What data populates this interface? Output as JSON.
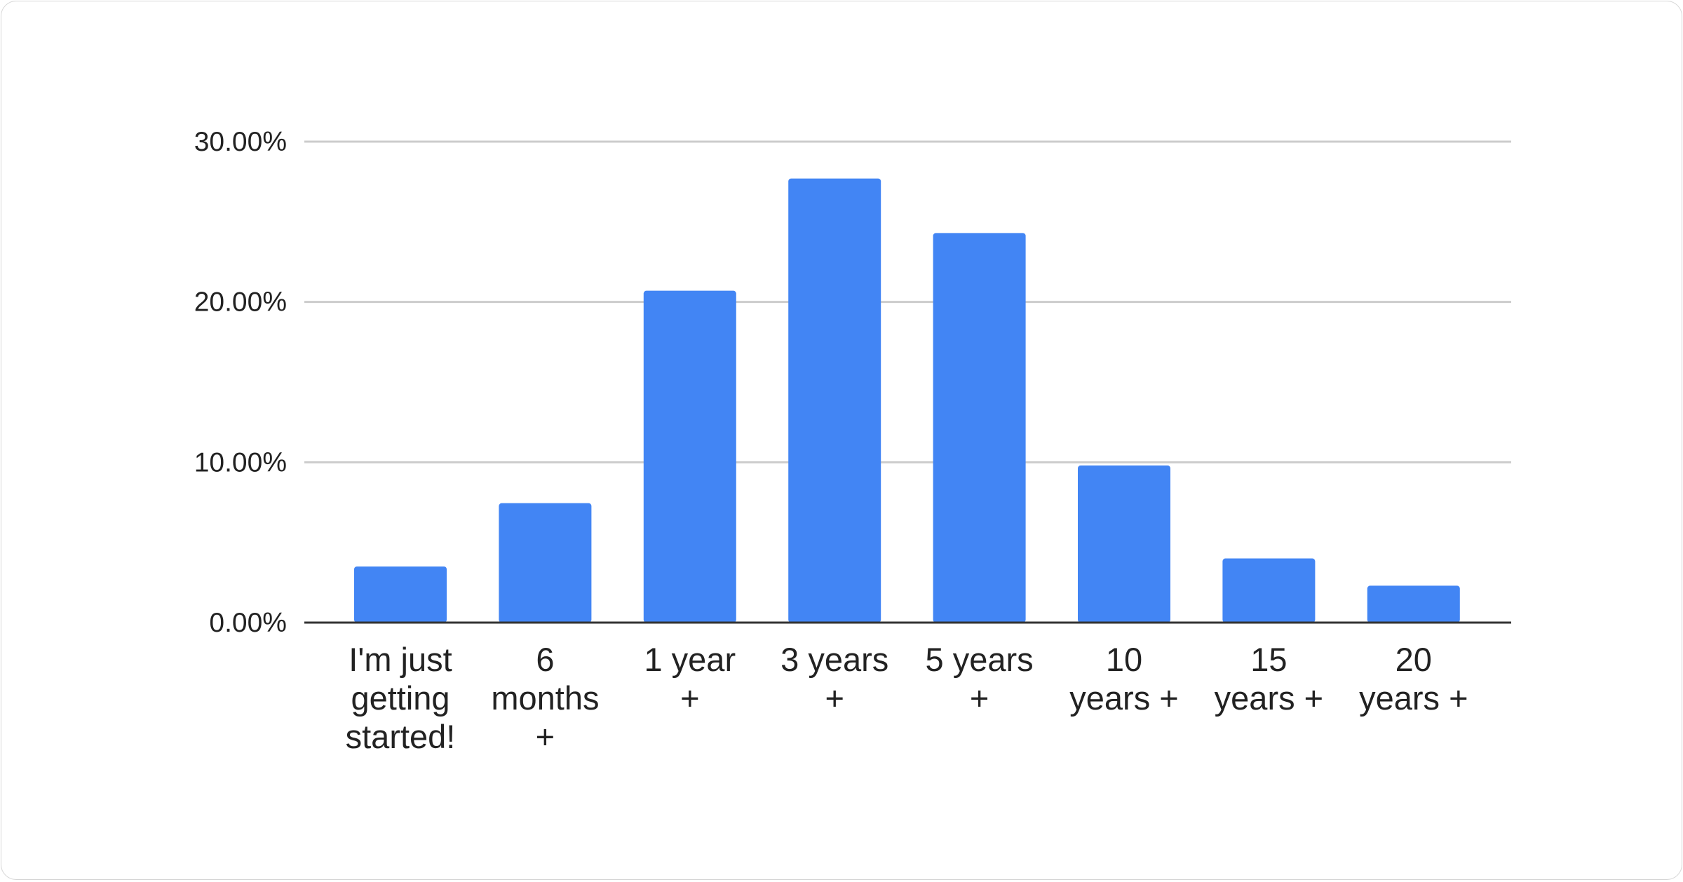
{
  "chart_data": {
    "type": "bar",
    "title": "",
    "xlabel": "",
    "ylabel": "",
    "categories": [
      [
        "I'm just",
        "getting",
        "started!"
      ],
      [
        "6",
        "months",
        "+"
      ],
      [
        "1 year",
        "+"
      ],
      [
        "3 years",
        "+"
      ],
      [
        "5 years",
        "+"
      ],
      [
        "10",
        "years +"
      ],
      [
        "15",
        "years +"
      ],
      [
        "20",
        "years +"
      ]
    ],
    "values": [
      3.5,
      7.45,
      20.7,
      27.7,
      24.3,
      9.8,
      4.0,
      2.3
    ],
    "ylim": [
      0,
      30
    ],
    "yticks": [
      "0.00%",
      "10.00%",
      "20.00%",
      "30.00%"
    ],
    "ytick_values": [
      0,
      10,
      20,
      30
    ],
    "grid": true,
    "bar_color": "#4285f4",
    "grid_color": "#cccccc",
    "axis_color": "#333333"
  }
}
